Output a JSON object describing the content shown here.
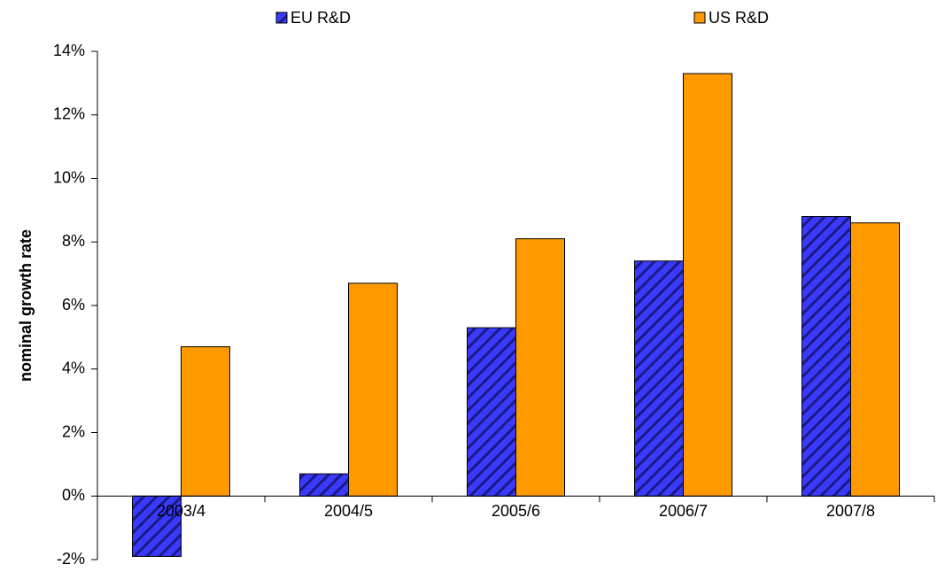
{
  "chart_data": {
    "type": "bar",
    "y_label": "nominal growth rate",
    "categories": [
      "2003/4",
      "2004/5",
      "2005/6",
      "2006/7",
      "2007/8"
    ],
    "series": [
      {
        "name": "EU R&D",
        "color": "#3a3aff",
        "hatch": "diagonal",
        "values": [
          -1.9,
          0.7,
          5.3,
          7.4,
          8.8
        ]
      },
      {
        "name": "US R&D",
        "color": "#ff9900",
        "values": [
          4.7,
          6.7,
          8.1,
          13.3,
          8.6
        ]
      }
    ],
    "ylim": [
      -2,
      14
    ],
    "yticks": [
      {
        "value": -2,
        "label": "-2%"
      },
      {
        "value": 0,
        "label": "0%"
      },
      {
        "value": 2,
        "label": "2%"
      },
      {
        "value": 4,
        "label": "4%"
      },
      {
        "value": 6,
        "label": "6%"
      },
      {
        "value": 8,
        "label": "8%"
      },
      {
        "value": 10,
        "label": "10%"
      },
      {
        "value": 12,
        "label": "12%"
      },
      {
        "value": 14,
        "label": "14%"
      }
    ],
    "legend": "top"
  }
}
